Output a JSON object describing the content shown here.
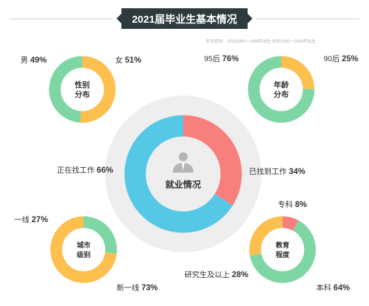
{
  "header": {
    "title": "2021届毕业生基本情况",
    "note": "名词说明： 95后1995～1999年出生  90后1990～1994年出生"
  },
  "colors": {
    "green": "#7fd6a5",
    "yellow": "#fdbf4e",
    "blue": "#55c8e6",
    "red": "#f77f7c",
    "text": "#333333",
    "bubble_bg": "#eeeeee"
  },
  "chart_data": [
    {
      "type": "pie",
      "id": "gender",
      "center_label": [
        "性别",
        "分布"
      ],
      "slices": [
        {
          "label": "女",
          "value": 51,
          "display": "51%",
          "color": "#fdbf4e"
        },
        {
          "label": "男",
          "value": 49,
          "display": "49%",
          "color": "#7fd6a5"
        }
      ]
    },
    {
      "type": "pie",
      "id": "age",
      "center_label": [
        "年龄",
        "分布"
      ],
      "slices": [
        {
          "label": "90后",
          "value": 25,
          "display": "25%",
          "color": "#fdbf4e"
        },
        {
          "label": "95后",
          "value": 76,
          "display": "76%",
          "color": "#7fd6a5"
        }
      ]
    },
    {
      "type": "pie",
      "id": "employment",
      "center_label": [
        "就业情况"
      ],
      "slices": [
        {
          "label": "已找到工作",
          "value": 34,
          "display": "34%",
          "color": "#f77f7c"
        },
        {
          "label": "正在找工作",
          "value": 66,
          "display": "66%",
          "color": "#55c8e6"
        }
      ]
    },
    {
      "type": "pie",
      "id": "city",
      "center_label": [
        "城市",
        "级别"
      ],
      "slices": [
        {
          "label": "一线",
          "value": 27,
          "display": "27%",
          "color": "#7fd6a5"
        },
        {
          "label": "新一线",
          "value": 73,
          "display": "73%",
          "color": "#fdbf4e"
        }
      ]
    },
    {
      "type": "pie",
      "id": "education",
      "center_label": [
        "教育",
        "程度"
      ],
      "slices": [
        {
          "label": "专科",
          "value": 8,
          "display": "8%",
          "color": "#f77f7c"
        },
        {
          "label": "本科",
          "value": 64,
          "display": "64%",
          "color": "#7fd6a5"
        },
        {
          "label": "研究生及以上",
          "value": 28,
          "display": "28%",
          "color": "#fdbf4e"
        }
      ]
    }
  ]
}
